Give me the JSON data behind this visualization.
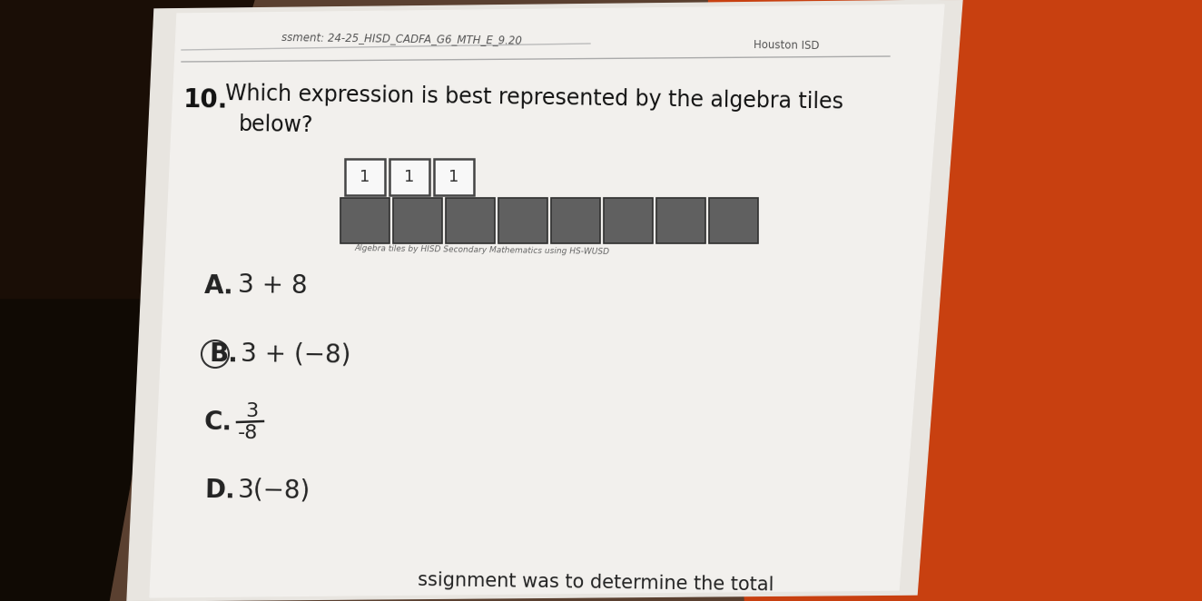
{
  "bg_color": "#5a4030",
  "paper_color": "#f2f0ed",
  "paper2_color": "#e8e5e0",
  "orange_color": "#c84010",
  "header_text": "ssment: 24-25_HISD_CADFA_G6_MTH_E_9.20",
  "hisd_text": "Houston ISD",
  "question_num": "10.",
  "tile_label": "1",
  "caption_text": "Algebra tiles by HISD Secondary Mathematics using HS-WUSD",
  "white_tile_color": "#f8f8f8",
  "white_tile_border": "#444444",
  "dark_tile_color": "#606060",
  "dark_tile_border": "#303030",
  "num_white_tiles": 3,
  "num_dark_tiles": 8,
  "option_C_num": "3",
  "option_C_den": "-8",
  "bottom_text": "ssignment was to determine the total"
}
